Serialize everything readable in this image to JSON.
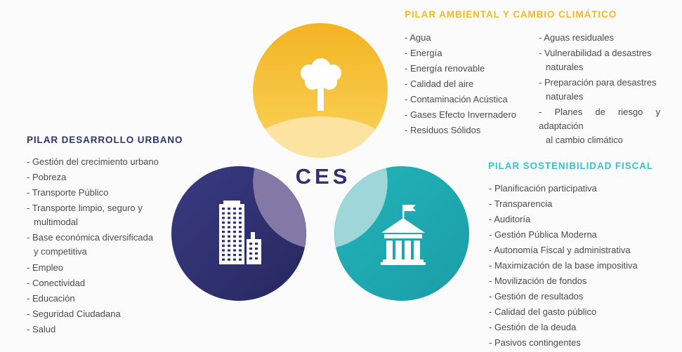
{
  "center_label": "CES",
  "pillars": {
    "ambiental": {
      "title": "PILAR AMBIENTAL Y CAMBIO CLIMÁTICO",
      "color": "#f5b921",
      "icon": "tree-icon",
      "items_col1": [
        "- Agua",
        "- Energía",
        "- Energía renovable",
        "- Calidad del aire",
        "- Contaminación Acústica",
        "- Gases Efecto Invernadero",
        "- Residuos Sólidos"
      ],
      "items_col2": [
        {
          "line1": "- Aguas residuales"
        },
        {
          "line1": "- Vulnerabilidad a desastres",
          "line2": "naturales"
        },
        {
          "line1": "- Preparación para desastres",
          "line2": "naturales"
        },
        {
          "line1": "- Planes de riesgo y adaptación",
          "line2": "al cambio climático"
        }
      ]
    },
    "urbano": {
      "title": "PILAR DESARROLLO URBANO",
      "color": "#2f3470",
      "icon": "buildings-icon",
      "items": [
        {
          "line1": "- Gestión del crecimiento urbano"
        },
        {
          "line1": "- Pobreza"
        },
        {
          "line1": "- Transporte Público"
        },
        {
          "line1": "- Transporte limpio, seguro y",
          "line2": "multimodal"
        },
        {
          "line1": "- Base económica diversificada",
          "line2": "y competitiva"
        },
        {
          "line1": "- Empleo"
        },
        {
          "line1": "- Conectividad"
        },
        {
          "line1": "- Educación"
        },
        {
          "line1": "- Seguridad Ciudadana"
        },
        {
          "line1": "- Salud"
        }
      ]
    },
    "fiscal": {
      "title": "PILAR SOSTENIBILIDAD FISCAL",
      "color": "#3dbfcd",
      "icon": "government-building-icon",
      "items": [
        "- Planificación participativa",
        "- Transparencia",
        "- Auditoría",
        "- Gestión Pública Moderna",
        "- Autonomía Fiscal y administrativa",
        "- Maximización de la base impositiva",
        "- Movilización de fondos",
        "- Gestión de resultados",
        "- Calidad del gasto público",
        "- Gestión de la deuda",
        "- Pasivos contingentes"
      ]
    }
  }
}
